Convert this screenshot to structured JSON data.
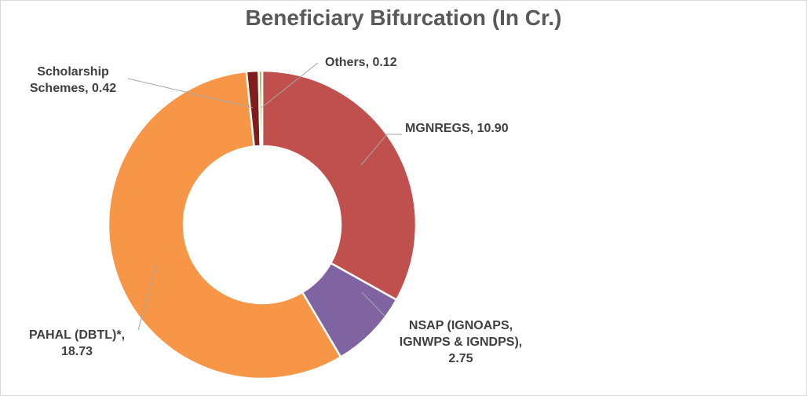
{
  "chart_data": {
    "type": "pie",
    "subtype": "donut",
    "title": "Beneficiary Bifurcation (In Cr.)",
    "unit": "Cr.",
    "slices": [
      {
        "name": "MGNREGS",
        "value": 10.9,
        "display": "10.90",
        "color": "#c0504d",
        "label_lines": [
          "MGNREGS, 10.90"
        ]
      },
      {
        "name": "NSAP (IGNOAPS, IGNWPS & IGNDPS)",
        "value": 2.75,
        "display": "2.75",
        "color": "#8064a2",
        "label_lines": [
          "NSAP (IGNOAPS,",
          "IGNWPS & IGNDPS),",
          "2.75"
        ]
      },
      {
        "name": "PAHAL (DBTL)*",
        "value": 18.73,
        "display": "18.73",
        "color": "#f79646",
        "label_lines": [
          "PAHAL (DBTL)*,",
          "18.73"
        ]
      },
      {
        "name": "Scholarship Schemes",
        "value": 0.42,
        "display": "0.42",
        "color": "#7f1d1d",
        "label_lines": [
          "Scholarship",
          "Schemes, 0.42"
        ]
      },
      {
        "name": "Others",
        "value": 0.12,
        "display": "0.12",
        "color": "#9bbb59",
        "label_lines": [
          "Others, 0.12"
        ]
      }
    ],
    "start_angle": "12 o'clock",
    "direction": "clockwise",
    "legend": "none",
    "data_labels": "outside with leader lines"
  }
}
